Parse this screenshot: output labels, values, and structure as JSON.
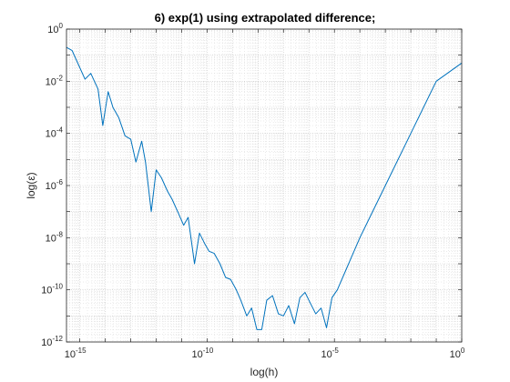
{
  "chart_data": {
    "type": "line",
    "title": "6) exp(1) using extrapolated difference;",
    "xlabel": "log(h)",
    "ylabel": "log(ε)",
    "xscale": "log",
    "yscale": "log",
    "xlim": [
      3e-16,
      1
    ],
    "ylim": [
      1e-12,
      1
    ],
    "grid": true,
    "minor_grid": true,
    "x_ticks": [
      {
        "base": "10",
        "exp": "-15"
      },
      {
        "base": "10",
        "exp": "-10"
      },
      {
        "base": "10",
        "exp": "-5"
      },
      {
        "base": "10",
        "exp": "0"
      }
    ],
    "y_ticks": [
      {
        "base": "10",
        "exp": "-12"
      },
      {
        "base": "10",
        "exp": "-10"
      },
      {
        "base": "10",
        "exp": "-8"
      },
      {
        "base": "10",
        "exp": "-6"
      },
      {
        "base": "10",
        "exp": "-4"
      },
      {
        "base": "10",
        "exp": "-2"
      },
      {
        "base": "10",
        "exp": "0"
      }
    ],
    "line_color": "#0072BD",
    "series": [
      {
        "x": [
          3e-16,
          5e-16,
          1.6e-15,
          2.7e-15,
          5.2e-15,
          8e-15,
          1.3e-14,
          2e-14,
          3.4e-14,
          6e-14,
          1e-13,
          1.6e-13,
          2.7e-13,
          3.8e-13,
          6.4e-13,
          1e-12,
          1.6e-12,
          2.8e-12,
          4.2e-12,
          7e-12,
          1.2e-11,
          1.8e-11,
          3.2e-11,
          5e-11,
          8e-11,
          1.2e-10,
          1.9e-10,
          3.2e-10,
          5.3e-10,
          8.4e-10,
          1.4e-09,
          2.1e-09,
          3.6e-09,
          5.6e-09,
          9e-09,
          1.4e-08,
          2.2e-08,
          3.7e-08,
          6.3e-08,
          1e-07,
          1.6e-07,
          2.7e-07,
          4.4e-07,
          7e-07,
          1.15e-06,
          1.85e-06,
          3e-06,
          4.9e-06,
          8e-06,
          1.3e-05,
          0.0001,
          0.001,
          0.01,
          0.1,
          1.0
        ],
        "y": [
          0.2,
          0.15,
          0.012,
          0.02,
          0.005,
          0.0002,
          0.004,
          0.001,
          0.0004,
          8e-05,
          6e-05,
          8e-06,
          5e-05,
          8e-06,
          1e-07,
          4e-06,
          2e-06,
          6e-07,
          3e-07,
          1e-07,
          3e-08,
          6e-08,
          1e-09,
          1.5e-08,
          6e-09,
          3e-09,
          2.5e-09,
          1e-09,
          3e-10,
          2.5e-10,
          1e-10,
          4e-11,
          1e-11,
          2e-11,
          3e-12,
          3e-12,
          4e-11,
          6e-11,
          1.2e-11,
          1e-11,
          2.5e-11,
          5e-12,
          5e-11,
          8e-11,
          3e-11,
          1.2e-11,
          2e-11,
          3.5e-12,
          5e-11,
          1e-10,
          1e-08,
          1e-06,
          0.0001,
          0.01,
          0.05
        ]
      }
    ]
  }
}
